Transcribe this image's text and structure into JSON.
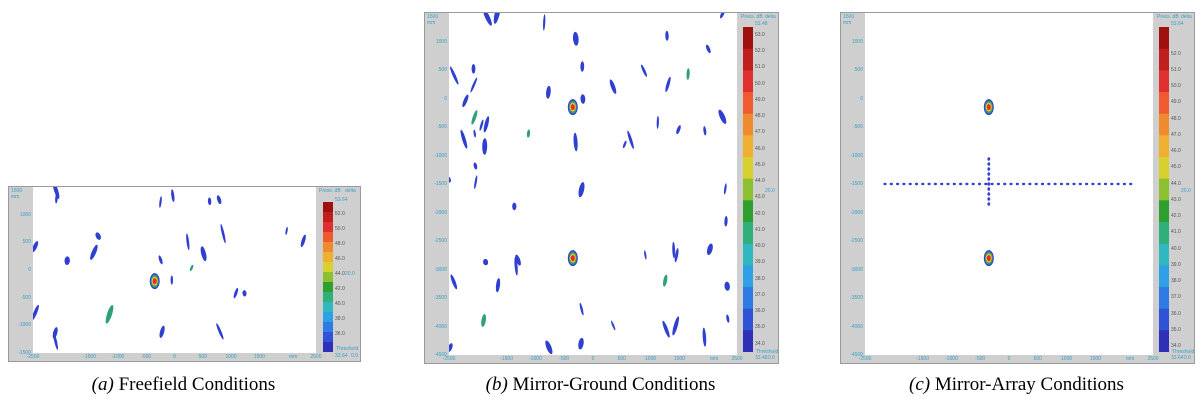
{
  "chart_data": [
    {
      "type": "heatmap",
      "panel_label": "(a)",
      "caption": "Freefield Conditions",
      "header_left": "1500 mm",
      "header_unit": "Press. dB",
      "header_right": "delta",
      "delta_value": "20.0",
      "max_value": "53.64",
      "min_value": "33.64",
      "threshold_label": "Threshold",
      "threshold_value": "0.0",
      "xlabel": "mm",
      "x_ticks": [
        "-2500",
        "-1500",
        "-1000",
        "-500",
        "0",
        "500",
        "1000",
        "1500",
        "2500"
      ],
      "y_ticks": [
        "1000",
        "500",
        "0",
        "-500",
        "-1000",
        "-1500"
      ],
      "xlim": [
        -2500,
        2500
      ],
      "ylim": [
        -1500,
        1500
      ],
      "colorbar_ticks": [
        "52.0",
        "50.0",
        "48.0",
        "46.0",
        "44.0",
        "42.0",
        "40.0",
        "38.0",
        "36.0"
      ],
      "colorbar_range": [
        33.64,
        53.64
      ],
      "sources": [
        {
          "x": -350,
          "y": -200
        }
      ]
    },
    {
      "type": "heatmap",
      "panel_label": "(b)",
      "caption": "Mirror-Ground Conditions",
      "header_left": "1500 mm",
      "header_unit": "Press. dB",
      "header_right": "delta",
      "delta_value": "20.0",
      "max_value": "53.48",
      "min_value": "33.48",
      "threshold_label": "Threshold",
      "threshold_value": "0.0",
      "xlabel": "mm",
      "x_ticks": [
        "-2500",
        "-1500",
        "-1000",
        "-500",
        "0",
        "500",
        "1000",
        "1500",
        "2500"
      ],
      "y_ticks": [
        "1000",
        "500",
        "0",
        "-500",
        "-1000",
        "-1500",
        "-2000",
        "-2500",
        "-3000",
        "-3500",
        "-4000",
        "-4500"
      ],
      "xlim": [
        -2500,
        2500
      ],
      "ylim": [
        -4500,
        1500
      ],
      "colorbar_ticks": [
        "53.0",
        "52.0",
        "51.0",
        "50.0",
        "49.0",
        "48.0",
        "47.0",
        "46.0",
        "45.0",
        "44.0",
        "43.0",
        "42.0",
        "41.0",
        "40.0",
        "39.0",
        "38.0",
        "37.0",
        "36.0",
        "35.0",
        "34.0"
      ],
      "colorbar_range": [
        33.48,
        53.48
      ],
      "sources": [
        {
          "x": -350,
          "y": -150
        },
        {
          "x": -350,
          "y": -2800
        }
      ]
    },
    {
      "type": "heatmap",
      "panel_label": "(c)",
      "caption": "Mirror-Array Conditions",
      "header_left": "1500 mm",
      "header_unit": "Press. dB",
      "header_right": "delta",
      "delta_value": "20.0",
      "max_value": "53.64",
      "min_value": "33.64",
      "threshold_label": "Threshold",
      "threshold_value": "0.0",
      "xlabel": "mm",
      "x_ticks": [
        "-2500",
        "-1500",
        "-1000",
        "-500",
        "0",
        "500",
        "1000",
        "1500",
        "2500"
      ],
      "y_ticks": [
        "1000",
        "500",
        "0",
        "-500",
        "-1000",
        "-1500",
        "-2000",
        "-2500",
        "-3000",
        "-3500",
        "-4000",
        "-4500"
      ],
      "xlim": [
        -2500,
        2500
      ],
      "ylim": [
        -4500,
        1500
      ],
      "colorbar_ticks": [
        "52.0",
        "51.0",
        "50.0",
        "49.0",
        "48.0",
        "47.0",
        "46.0",
        "45.0",
        "44.0",
        "43.0",
        "42.0",
        "41.0",
        "40.0",
        "39.0",
        "38.0",
        "37.0",
        "36.0",
        "35.0",
        "34.0"
      ],
      "colorbar_range": [
        33.64,
        53.64
      ],
      "sources": [
        {
          "x": -350,
          "y": -150
        },
        {
          "x": -350,
          "y": -2800
        }
      ]
    }
  ]
}
